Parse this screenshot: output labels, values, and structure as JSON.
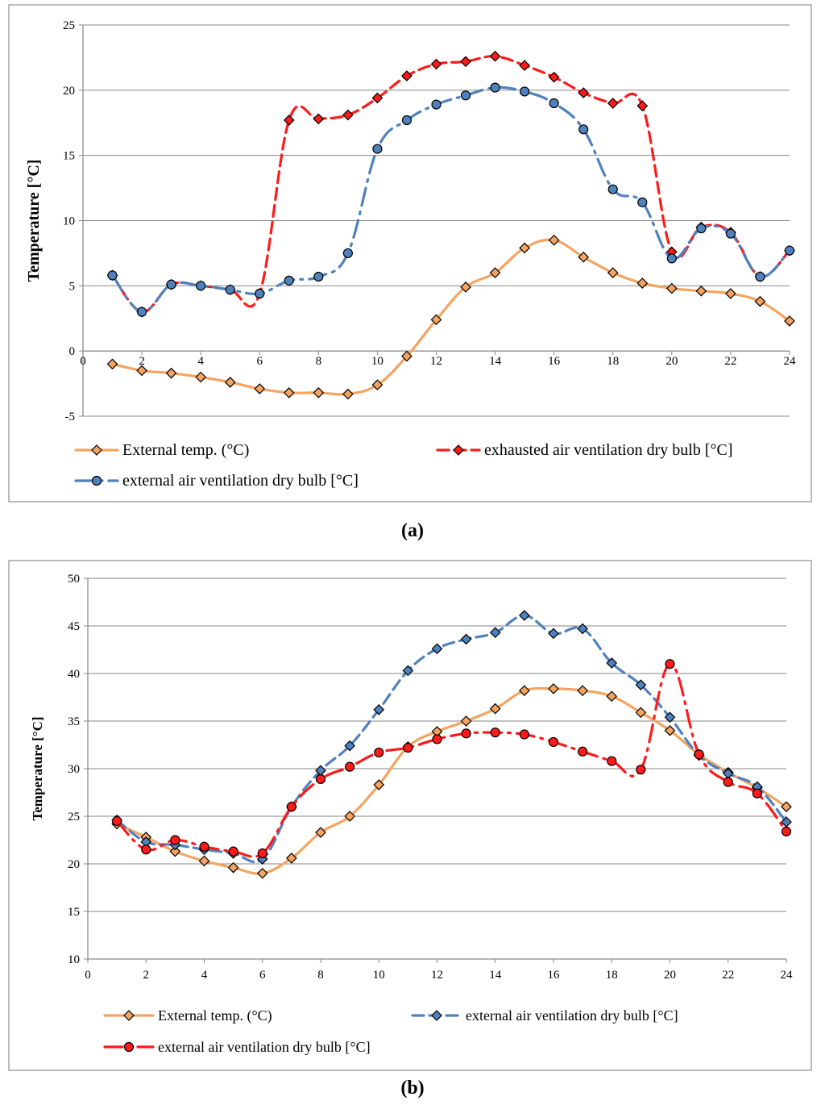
{
  "chart_data": [
    {
      "panel": "(a)",
      "type": "line",
      "xlabel": "",
      "ylabel": "Temperature [°C]",
      "xlim": [
        0,
        24
      ],
      "ylim": [
        -5,
        25
      ],
      "xticks": [
        "0",
        "2",
        "4",
        "6",
        "8",
        "10",
        "12",
        "14",
        "16",
        "18",
        "20",
        "22",
        "24"
      ],
      "yticks": [
        "-5",
        "0",
        "5",
        "10",
        "15",
        "20",
        "25"
      ],
      "grid": "horizontal",
      "legend": "bottom",
      "series": [
        {
          "name": "External temp. (°C)",
          "color": "#F4A460",
          "marker": "diamond",
          "dash": "solid",
          "x": [
            1,
            2,
            3,
            4,
            5,
            6,
            7,
            8,
            9,
            10,
            11,
            12,
            13,
            14,
            15,
            16,
            17,
            18,
            19,
            20,
            21,
            22,
            23,
            24
          ],
          "values": [
            -1.0,
            -1.5,
            -1.7,
            -2.0,
            -2.4,
            -2.9,
            -3.2,
            -3.2,
            -3.3,
            -2.6,
            -0.4,
            2.4,
            4.9,
            6.0,
            7.9,
            8.5,
            7.2,
            6.0,
            5.2,
            4.8,
            4.6,
            4.4,
            3.8,
            2.3
          ]
        },
        {
          "name": "exhausted air ventilation dry bulb [°C]",
          "color": "#FF1A1A",
          "marker": "diamond",
          "dash": "dash",
          "x": [
            1,
            2,
            3,
            4,
            5,
            6,
            7,
            8,
            9,
            10,
            11,
            12,
            13,
            14,
            15,
            16,
            17,
            18,
            19,
            20,
            21,
            22,
            23,
            24
          ],
          "values": [
            5.8,
            3.0,
            5.1,
            5.0,
            4.7,
            4.4,
            17.7,
            17.8,
            18.1,
            19.4,
            21.1,
            22.0,
            22.2,
            22.6,
            21.9,
            21.0,
            19.8,
            19.0,
            18.8,
            7.6,
            9.5,
            9.1,
            5.7,
            7.7
          ]
        },
        {
          "name": "external air ventilation dry bulb [°C]",
          "color": "#4F81BD",
          "marker": "circle",
          "dash": "dashdot",
          "x": [
            1,
            2,
            3,
            4,
            5,
            6,
            7,
            8,
            9,
            10,
            11,
            12,
            13,
            14,
            15,
            16,
            17,
            18,
            19,
            20,
            21,
            22,
            23,
            24
          ],
          "values": [
            5.8,
            3.0,
            5.1,
            5.0,
            4.7,
            4.4,
            5.4,
            5.7,
            7.5,
            15.5,
            17.7,
            18.9,
            19.6,
            20.2,
            19.9,
            19.0,
            17.0,
            12.4,
            11.4,
            7.1,
            9.4,
            9.0,
            5.7,
            7.7
          ]
        }
      ]
    },
    {
      "panel": "(b)",
      "type": "line",
      "xlabel": "",
      "ylabel": "Temperature [°C]",
      "xlim": [
        0,
        24
      ],
      "ylim": [
        10,
        50
      ],
      "xticks": [
        "0",
        "2",
        "4",
        "6",
        "8",
        "10",
        "12",
        "14",
        "16",
        "18",
        "20",
        "22",
        "24"
      ],
      "yticks": [
        "10",
        "15",
        "20",
        "25",
        "30",
        "35",
        "40",
        "45",
        "50"
      ],
      "grid": "horizontal",
      "legend": "bottom",
      "series": [
        {
          "name": "External temp. (°C)",
          "color": "#F4A460",
          "marker": "diamond",
          "dash": "solid",
          "x": [
            1,
            2,
            3,
            4,
            5,
            6,
            7,
            8,
            9,
            10,
            11,
            12,
            13,
            14,
            15,
            16,
            17,
            18,
            19,
            20,
            21,
            22,
            23,
            24
          ],
          "values": [
            24.2,
            22.8,
            21.3,
            20.3,
            19.6,
            19.0,
            20.6,
            23.3,
            25.0,
            28.3,
            32.3,
            33.9,
            35.0,
            36.3,
            38.2,
            38.4,
            38.2,
            37.6,
            35.9,
            34.0,
            31.5,
            29.6,
            28.0,
            26.0
          ]
        },
        {
          "name": "external air ventilation dry bulb [°C]",
          "color": "#4F81BD",
          "marker": "diamond",
          "dash": "dash",
          "x": [
            1,
            2,
            3,
            4,
            5,
            6,
            7,
            8,
            9,
            10,
            11,
            12,
            13,
            14,
            15,
            16,
            17,
            18,
            19,
            20,
            21,
            22,
            23,
            24
          ],
          "values": [
            24.6,
            22.3,
            22.0,
            21.5,
            21.1,
            20.5,
            26.0,
            29.8,
            32.4,
            36.2,
            40.3,
            42.6,
            43.6,
            44.3,
            46.1,
            44.2,
            44.7,
            41.1,
            38.8,
            35.4,
            31.4,
            29.5,
            28.1,
            24.4
          ]
        },
        {
          "name": "external air ventilation dry bulb [°C]",
          "color": "#FF1A1A",
          "marker": "circle",
          "dash": "dashdot",
          "x": [
            1,
            2,
            3,
            4,
            5,
            6,
            7,
            8,
            9,
            10,
            11,
            12,
            13,
            14,
            15,
            16,
            17,
            18,
            19,
            20,
            21,
            22,
            23,
            24
          ],
          "values": [
            24.5,
            21.5,
            22.5,
            21.8,
            21.3,
            21.1,
            26.0,
            28.9,
            30.2,
            31.7,
            32.2,
            33.1,
            33.7,
            33.8,
            33.6,
            32.8,
            31.8,
            30.8,
            29.9,
            41.0,
            31.5,
            28.6,
            27.4,
            23.4
          ]
        }
      ]
    }
  ]
}
